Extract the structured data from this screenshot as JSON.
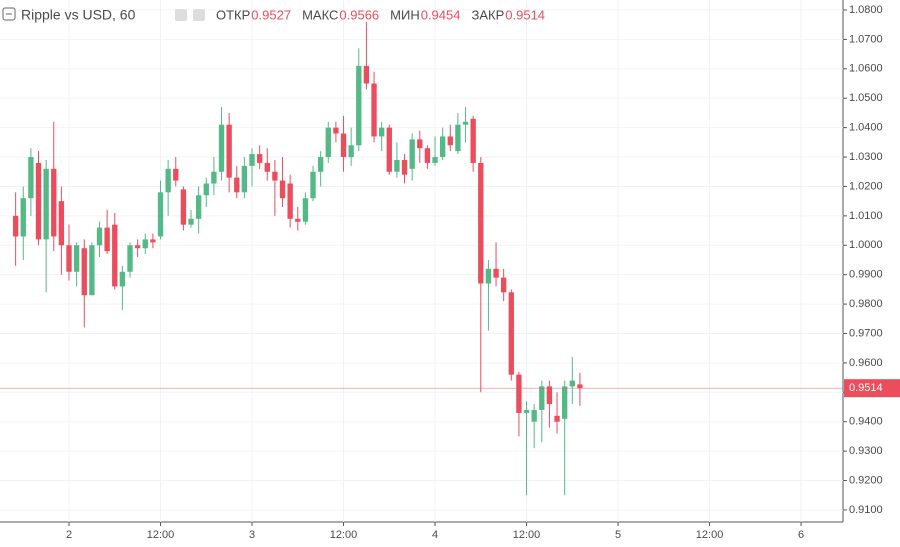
{
  "chart_data": {
    "type": "candlestick",
    "title": "Ripple vs USD, 60",
    "ohlc_labels": [
      "ОТКР",
      "МАКС",
      "МИН",
      "ЗАКР"
    ],
    "up_color": "#53b987",
    "down_color": "#eb4d5c",
    "x": [
      -7,
      -6,
      -5,
      -4,
      -3,
      -2,
      -1,
      0,
      1,
      2,
      3,
      4,
      5,
      6,
      7,
      8,
      9,
      10,
      11,
      12,
      13,
      14,
      15,
      16,
      17,
      18,
      19,
      20,
      21,
      22,
      23,
      24,
      25,
      26,
      27,
      28,
      29,
      30,
      31,
      32,
      33,
      34,
      35,
      36,
      37,
      38,
      39,
      40,
      41,
      42,
      43,
      44,
      45,
      46,
      47,
      48,
      49,
      50,
      51,
      52,
      53,
      54,
      55,
      56,
      57,
      58,
      59,
      60,
      61,
      62,
      63,
      64,
      65,
      66,
      67
    ],
    "open": [
      1.01,
      1.003,
      1.016,
      1.028,
      1.002,
      1.026,
      1.015,
      1.0,
      0.991,
      0.999,
      0.983,
      1.0,
      1.006,
      1.007,
      0.986,
      0.991,
      1.0,
      0.999,
      1.002,
      1.003,
      1.018,
      1.026,
      1.019,
      1.007,
      1.009,
      1.017,
      1.021,
      1.025,
      1.041,
      1.023,
      1.018,
      1.027,
      1.031,
      1.028,
      1.025,
      1.022,
      1.021,
      1.009,
      1.008,
      1.016,
      1.025,
      1.03,
      1.04,
      1.038,
      1.03,
      1.034,
      1.061,
      1.055,
      1.037,
      1.04,
      1.025,
      1.029,
      1.026,
      1.036,
      1.033,
      1.028,
      1.03,
      1.037,
      1.032,
      1.041,
      1.043,
      1.028,
      0.987,
      0.992,
      0.989,
      0.984,
      0.956,
      0.943,
      0.94,
      0.944,
      0.952,
      0.942,
      0.941,
      0.952,
      0.9527
    ],
    "high": [
      1.018,
      1.02,
      1.033,
      1.032,
      1.029,
      1.042,
      1.02,
      1.007,
      1.001,
      1.002,
      1.001,
      1.008,
      1.012,
      1.011,
      0.993,
      1.001,
      1.002,
      1.004,
      1.004,
      1.022,
      1.029,
      1.03,
      1.02,
      1.012,
      1.02,
      1.023,
      1.03,
      1.047,
      1.045,
      1.027,
      1.03,
      1.033,
      1.034,
      1.033,
      1.029,
      1.03,
      1.024,
      1.013,
      1.018,
      1.027,
      1.032,
      1.042,
      1.042,
      1.044,
      1.04,
      1.067,
      1.076,
      1.059,
      1.042,
      1.041,
      1.035,
      1.031,
      1.038,
      1.039,
      1.034,
      1.037,
      1.04,
      1.041,
      1.045,
      1.047,
      1.044,
      1.03,
      0.995,
      1.001,
      0.992,
      0.985,
      0.957,
      0.947,
      0.946,
      0.954,
      0.954,
      0.95,
      0.954,
      0.962,
      0.9566
    ],
    "low": [
      0.993,
      0.995,
      1.01,
      1.0,
      0.984,
      0.998,
      0.99,
      0.988,
      0.986,
      0.972,
      0.983,
      0.996,
      0.997,
      0.985,
      0.978,
      0.989,
      0.996,
      0.997,
      0.999,
      1.002,
      1.01,
      1.02,
      1.005,
      1.006,
      1.004,
      1.013,
      1.017,
      1.022,
      1.018,
      1.016,
      1.016,
      1.02,
      1.026,
      1.022,
      1.01,
      1.013,
      1.006,
      1.005,
      1.007,
      1.015,
      1.02,
      1.028,
      1.035,
      1.025,
      1.027,
      1.032,
      1.053,
      1.035,
      1.032,
      1.024,
      1.023,
      1.021,
      1.022,
      1.028,
      1.026,
      1.027,
      1.029,
      1.032,
      1.031,
      1.035,
      1.025,
      0.95,
      0.971,
      0.986,
      0.981,
      0.954,
      0.935,
      0.915,
      0.931,
      0.933,
      0.938,
      0.936,
      0.915,
      0.946,
      0.9454
    ],
    "close": [
      1.003,
      1.016,
      1.03,
      1.002,
      1.026,
      1.003,
      1.0,
      0.991,
      1.0,
      0.983,
      1.0,
      1.006,
      0.998,
      0.986,
      0.991,
      1.0,
      0.999,
      1.002,
      1.001,
      1.018,
      1.026,
      1.022,
      1.007,
      1.009,
      1.017,
      1.021,
      1.025,
      1.041,
      1.023,
      1.018,
      1.027,
      1.031,
      1.028,
      1.025,
      1.022,
      1.016,
      1.009,
      1.008,
      1.016,
      1.025,
      1.03,
      1.04,
      1.038,
      1.03,
      1.034,
      1.061,
      1.055,
      1.037,
      1.04,
      1.025,
      1.029,
      1.024,
      1.036,
      1.033,
      1.028,
      1.03,
      1.037,
      1.034,
      1.041,
      1.042,
      1.028,
      0.987,
      0.992,
      0.989,
      0.984,
      0.956,
      0.943,
      0.944,
      0.944,
      0.952,
      0.946,
      0.94,
      0.952,
      0.954,
      0.9514
    ],
    "xlim": [
      -9.05,
      101.5
    ],
    "xticks": [
      {
        "value": 0,
        "label": "2"
      },
      {
        "value": 12,
        "label": "12:00"
      },
      {
        "value": 24,
        "label": "3"
      },
      {
        "value": 36,
        "label": "12:00"
      },
      {
        "value": 48,
        "label": "4"
      },
      {
        "value": 60,
        "label": "12:00"
      },
      {
        "value": 72,
        "label": "5"
      },
      {
        "value": 84,
        "label": "12:00"
      },
      {
        "value": 96,
        "label": "6"
      }
    ],
    "ylim": [
      0.9059,
      1.0834
    ],
    "yticks": [
      {
        "value": 0.91,
        "label": "0.9100"
      },
      {
        "value": 0.92,
        "label": "0.9200"
      },
      {
        "value": 0.93,
        "label": "0.9300"
      },
      {
        "value": 0.94,
        "label": "0.9400"
      },
      {
        "value": 0.95,
        "label": "0.9500"
      },
      {
        "value": 0.96,
        "label": "0.9600"
      },
      {
        "value": 0.97,
        "label": "0.9700"
      },
      {
        "value": 0.98,
        "label": "0.9800"
      },
      {
        "value": 0.99,
        "label": "0.9900"
      },
      {
        "value": 1.0,
        "label": "1.0000"
      },
      {
        "value": 1.01,
        "label": "1.0100"
      },
      {
        "value": 1.02,
        "label": "1.0200"
      },
      {
        "value": 1.03,
        "label": "1.0300"
      },
      {
        "value": 1.04,
        "label": "1.0400"
      },
      {
        "value": 1.05,
        "label": "1.0500"
      },
      {
        "value": 1.06,
        "label": "1.0600"
      },
      {
        "value": 1.07,
        "label": "1.0700"
      },
      {
        "value": 1.08,
        "label": "1.0800"
      }
    ],
    "grid": true
  }
}
